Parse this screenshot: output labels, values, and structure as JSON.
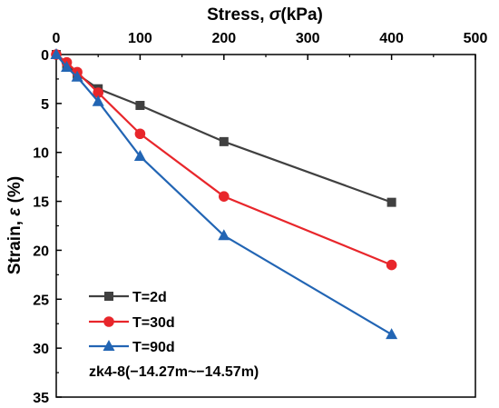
{
  "chart_data": {
    "type": "line",
    "xlabel_prefix": "Stress, ",
    "xlabel_symbol": "σ",
    "xlabel_suffix": "(kPa)",
    "ylabel_prefix": "Strain, ",
    "ylabel_symbol": "ε",
    "ylabel_suffix": " (%)",
    "xlim": [
      0,
      500
    ],
    "ylim": [
      0,
      35
    ],
    "x_axis_position": "top",
    "y_inverted": true,
    "x_ticks": [
      0,
      100,
      200,
      300,
      400,
      500
    ],
    "x_tick_labels": [
      "0",
      "100",
      "200",
      "300",
      "400",
      "500"
    ],
    "y_ticks": [
      0,
      5,
      10,
      15,
      20,
      25,
      30,
      35
    ],
    "y_tick_labels": [
      "0",
      "5",
      "10",
      "15",
      "20",
      "25",
      "30",
      "35"
    ],
    "grid": false,
    "legend_position": "bottom-left",
    "annotation": "zk4-8(−14.27m~−14.57m)",
    "series": [
      {
        "name": "T=2d",
        "marker": "square",
        "color": "#404040",
        "x": [
          0,
          12.5,
          25,
          50,
          100,
          200,
          400
        ],
        "y": [
          0,
          1.0,
          2.0,
          3.5,
          5.2,
          8.9,
          15.1
        ]
      },
      {
        "name": "T=30d",
        "marker": "circle",
        "color": "#e8262b",
        "x": [
          0,
          12.5,
          25,
          50,
          100,
          200,
          400
        ],
        "y": [
          0,
          0.8,
          1.8,
          3.9,
          8.1,
          14.5,
          21.5
        ]
      },
      {
        "name": "T=90d",
        "marker": "triangle",
        "color": "#2265b4",
        "x": [
          0,
          12.5,
          25,
          50,
          100,
          200,
          400
        ],
        "y": [
          0,
          1.3,
          2.3,
          4.8,
          10.4,
          18.5,
          28.6
        ]
      }
    ]
  }
}
